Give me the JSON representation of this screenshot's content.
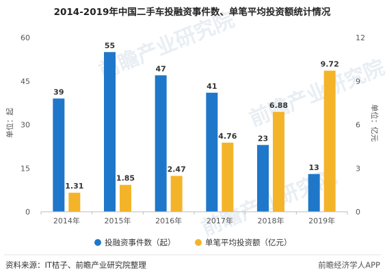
{
  "chart_data": {
    "type": "bar",
    "title": "2014-2019年中国二手车投融资事件数、单笔平均投资额统计情况",
    "categories": [
      "2014年",
      "2015年",
      "2016年",
      "2017年",
      "2018年",
      "2019年"
    ],
    "series": [
      {
        "name": "投融资事件数（起）",
        "axis": "left",
        "color": "#1f77c9",
        "values": [
          39,
          55,
          47,
          41,
          23,
          13
        ]
      },
      {
        "name": "单笔平均投资额（亿元）",
        "axis": "right",
        "color": "#f4b42a",
        "values": [
          1.31,
          1.85,
          2.47,
          4.76,
          6.88,
          9.72
        ]
      }
    ],
    "y_left": {
      "label": "单位：起",
      "min": 0,
      "max": 60,
      "ticks": [
        0,
        15,
        30,
        45,
        60
      ]
    },
    "y_right": {
      "label": "单位：亿元",
      "min": 0,
      "max": 12,
      "ticks": [
        0,
        3,
        6,
        9,
        12
      ]
    },
    "grid": false,
    "legend_position": "bottom"
  },
  "footer": {
    "source": "资料来源：IT桔子、前瞻产业研究院整理",
    "brand": "前瞻经济学人APP"
  },
  "watermarks": [
    "前瞻产业研究院",
    "前瞻产业研究院",
    "前瞻产业研究院"
  ]
}
